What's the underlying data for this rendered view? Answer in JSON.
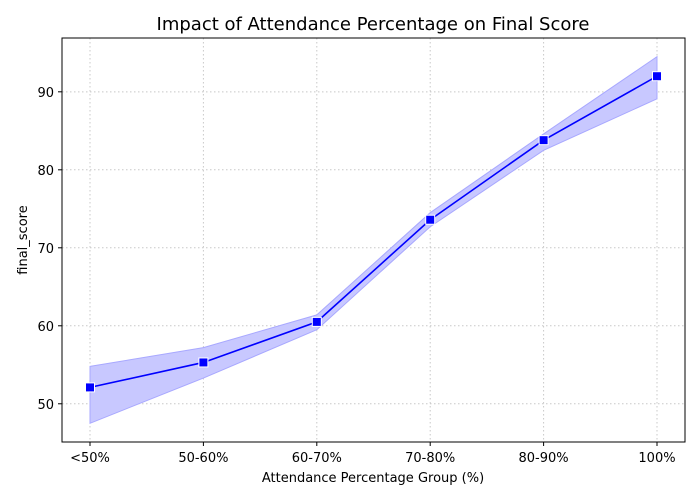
{
  "chart_data": {
    "type": "line",
    "title": "Impact of Attendance Percentage on Final Score",
    "xlabel": "Attendance Percentage Group (%)",
    "ylabel": "final_score",
    "categories": [
      "<50%",
      "50-60%",
      "60-70%",
      "70-80%",
      "80-90%",
      "100%"
    ],
    "series": [
      {
        "values": [
          52.1,
          55.3,
          60.5,
          73.6,
          83.8,
          92.0
        ],
        "ci_upper": [
          54.8,
          57.2,
          61.4,
          74.5,
          84.6,
          94.5
        ],
        "ci_lower": [
          47.5,
          53.3,
          59.5,
          72.7,
          82.5,
          89.1
        ],
        "color": "#0000ff",
        "band_color": "#c8c8ff",
        "marker": "square"
      }
    ],
    "yticks": [
      50,
      60,
      70,
      80,
      90
    ],
    "ylim": [
      45.1,
      96.9
    ],
    "grid": true
  }
}
